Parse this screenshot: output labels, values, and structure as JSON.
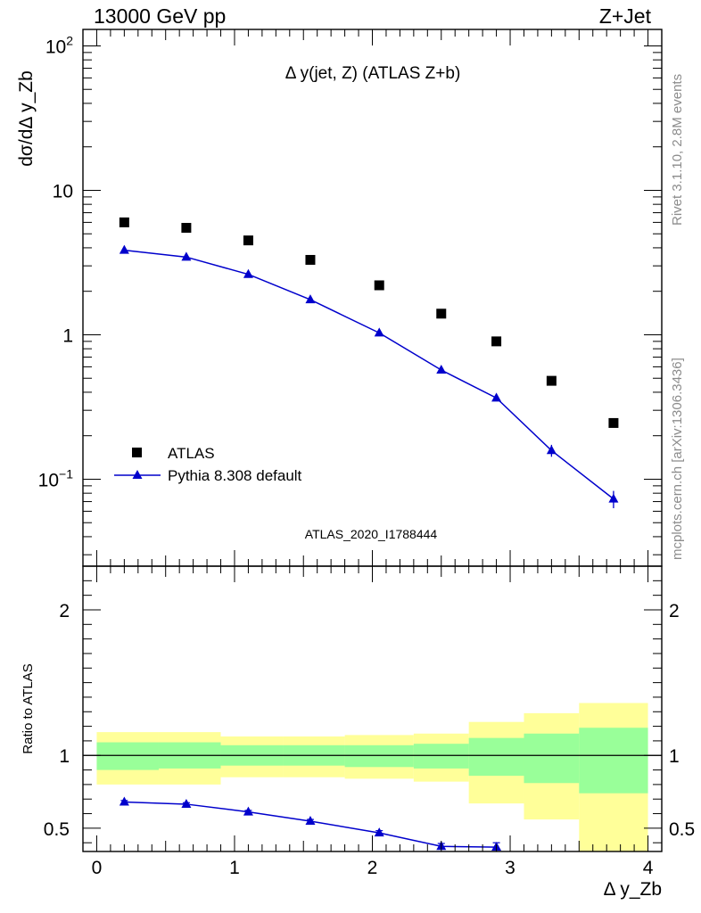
{
  "header": {
    "left": "13000 GeV pp",
    "right": "Z+Jet"
  },
  "side_labels": {
    "rivet": "Rivet 3.1.10,  2.8M events",
    "source": "mcplots.cern.ch [arXiv:1306.3436]"
  },
  "analysis_id": "ATLAS_2020_I1788444",
  "colors": {
    "data": "#000000",
    "mc": "#0000cc",
    "band_inner": "#99ff99",
    "band_outer": "#ffff99",
    "watermark": "#999999"
  },
  "chart_data": [
    {
      "type": "scatter",
      "panel": "main",
      "title": "Δ y(jet, Z) (ATLAS Z+b)",
      "ylabel": "dσ/dΔ y_Zb",
      "yscale": "log",
      "xlim": [
        -0.1,
        4.1
      ],
      "ylim": [
        0.025,
        130
      ],
      "ytick_labels": [
        "10^-1",
        "1",
        "10",
        "10^2"
      ],
      "legend_position": "bottom-left",
      "series": [
        {
          "name": "ATLAS",
          "marker": "square",
          "x": [
            0.2,
            0.65,
            1.1,
            1.55,
            2.05,
            2.5,
            2.9,
            3.3,
            3.75
          ],
          "y": [
            6.0,
            5.5,
            4.5,
            3.3,
            2.2,
            1.4,
            0.9,
            0.48,
            0.245
          ]
        },
        {
          "name": "Pythia 8.308 default",
          "marker": "triangle",
          "x": [
            0.2,
            0.65,
            1.1,
            1.55,
            2.05,
            2.5,
            2.9,
            3.3,
            3.75
          ],
          "y": [
            3.85,
            3.45,
            2.62,
            1.75,
            1.03,
            0.57,
            0.365,
            0.158,
            0.073
          ],
          "yerr": [
            0.05,
            0.05,
            0.04,
            0.03,
            0.02,
            0.015,
            0.012,
            0.015,
            0.01
          ]
        }
      ]
    },
    {
      "type": "line",
      "panel": "ratio",
      "ylabel": "Ratio to ATLAS",
      "xlabel": "Δ y_Zb",
      "xlim": [
        -0.1,
        4.1
      ],
      "ylim": [
        0.34,
        2.3
      ],
      "xtick_labels": [
        "0",
        "1",
        "2",
        "3",
        "4"
      ],
      "ytick_labels": [
        "0.5",
        "1",
        "2"
      ],
      "bands": [
        {
          "x0": 0.0,
          "x1": 0.45,
          "inner": [
            0.9,
            1.09
          ],
          "outer": [
            0.8,
            1.16
          ]
        },
        {
          "x0": 0.45,
          "x1": 0.9,
          "inner": [
            0.91,
            1.09
          ],
          "outer": [
            0.8,
            1.16
          ]
        },
        {
          "x0": 0.9,
          "x1": 1.35,
          "inner": [
            0.93,
            1.07
          ],
          "outer": [
            0.85,
            1.13
          ]
        },
        {
          "x0": 1.35,
          "x1": 1.8,
          "inner": [
            0.93,
            1.07
          ],
          "outer": [
            0.85,
            1.13
          ]
        },
        {
          "x0": 1.8,
          "x1": 2.3,
          "inner": [
            0.92,
            1.07
          ],
          "outer": [
            0.84,
            1.14
          ]
        },
        {
          "x0": 2.3,
          "x1": 2.7,
          "inner": [
            0.91,
            1.08
          ],
          "outer": [
            0.82,
            1.15
          ]
        },
        {
          "x0": 2.7,
          "x1": 3.1,
          "inner": [
            0.86,
            1.12
          ],
          "outer": [
            0.67,
            1.23
          ]
        },
        {
          "x0": 3.1,
          "x1": 3.5,
          "inner": [
            0.81,
            1.15
          ],
          "outer": [
            0.56,
            1.29
          ]
        },
        {
          "x0": 3.5,
          "x1": 4.0,
          "inner": [
            0.74,
            1.19
          ],
          "outer": [
            0.34,
            1.36
          ]
        }
      ],
      "series": [
        {
          "name": "Pythia 8.308 default",
          "x": [
            0.2,
            0.65,
            1.1,
            1.55,
            2.05,
            2.5,
            2.9
          ],
          "y": [
            0.68,
            0.665,
            0.612,
            0.548,
            0.468,
            0.375,
            0.37
          ],
          "yerr": [
            0.01,
            0.01,
            0.01,
            0.012,
            0.015,
            0.02,
            0.03
          ]
        }
      ]
    }
  ]
}
